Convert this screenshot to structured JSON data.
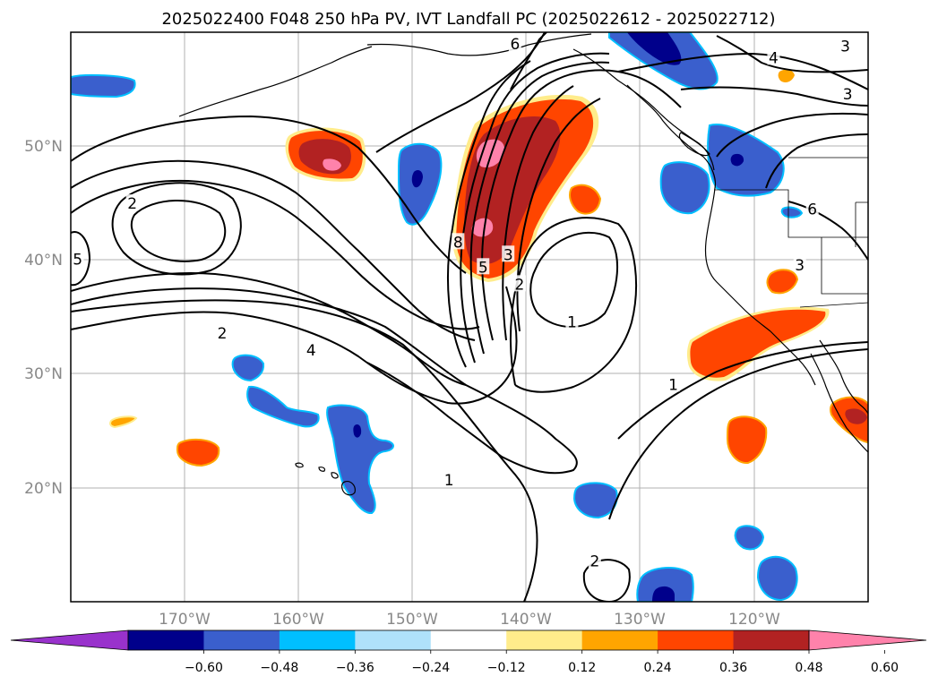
{
  "title": "2025022400 F048 250 hPa PV, IVT Landfall PC (2025022612 - 2025022712)",
  "map": {
    "lon_ticks": [
      "170°W",
      "160°W",
      "150°W",
      "140°W",
      "130°W",
      "120°W"
    ],
    "lat_ticks": [
      "50°N",
      "40°N",
      "30°N",
      "20°N"
    ],
    "extent": {
      "lon_min": -180,
      "lon_max": -110,
      "lat_min": 10,
      "lat_max": 60
    },
    "grid": true
  },
  "contours": {
    "line_color": "#000000",
    "labels": [
      {
        "text": "2",
        "lon": -174.6,
        "lat": 44.9
      },
      {
        "text": "5",
        "lon": -179.4,
        "lat": 40.0
      },
      {
        "text": "6",
        "lon": -141.0,
        "lat": 58.9
      },
      {
        "text": "4",
        "lon": -118.3,
        "lat": 57.7
      },
      {
        "text": "3",
        "lon": -112.0,
        "lat": 58.7
      },
      {
        "text": "3",
        "lon": -111.8,
        "lat": 54.5
      },
      {
        "text": "6",
        "lon": -114.9,
        "lat": 44.4
      },
      {
        "text": "3",
        "lon": -116.0,
        "lat": 39.5
      },
      {
        "text": "8",
        "lon": -146.0,
        "lat": 41.5
      },
      {
        "text": "5",
        "lon": -143.8,
        "lat": 39.3
      },
      {
        "text": "3",
        "lon": -141.6,
        "lat": 40.4
      },
      {
        "text": "2",
        "lon": -140.6,
        "lat": 37.8
      },
      {
        "text": "1",
        "lon": -136.0,
        "lat": 34.5
      },
      {
        "text": "2",
        "lon": -166.7,
        "lat": 33.5
      },
      {
        "text": "4",
        "lon": -158.9,
        "lat": 32.0
      },
      {
        "text": "1",
        "lon": -127.1,
        "lat": 29.0
      },
      {
        "text": "1",
        "lon": -146.8,
        "lat": 20.6
      },
      {
        "text": "2",
        "lon": -134.0,
        "lat": 13.5
      }
    ]
  },
  "colorbar": {
    "colors": [
      "#9932CC",
      "#00008B",
      "#3A5FCD",
      "#00BFFF",
      "#AFE1FA",
      "#FFFFFF",
      "#FFEC8B",
      "#FFA500",
      "#FF4500",
      "#B22222",
      "#FF82AB"
    ],
    "tick_labels": [
      "-0.60",
      "-0.48",
      "-0.36",
      "-0.24",
      "-0.12",
      "0.12",
      "0.24",
      "0.36",
      "0.48",
      "0.60"
    ],
    "levels": [
      -0.6,
      -0.48,
      -0.36,
      -0.24,
      -0.12,
      0.12,
      0.24,
      0.36,
      0.48,
      0.6
    ],
    "extend": "both"
  },
  "colors": {
    "frame": "#000000",
    "grid": "#b0b0b0",
    "coast": "#000000",
    "tick_text": "#888888"
  }
}
